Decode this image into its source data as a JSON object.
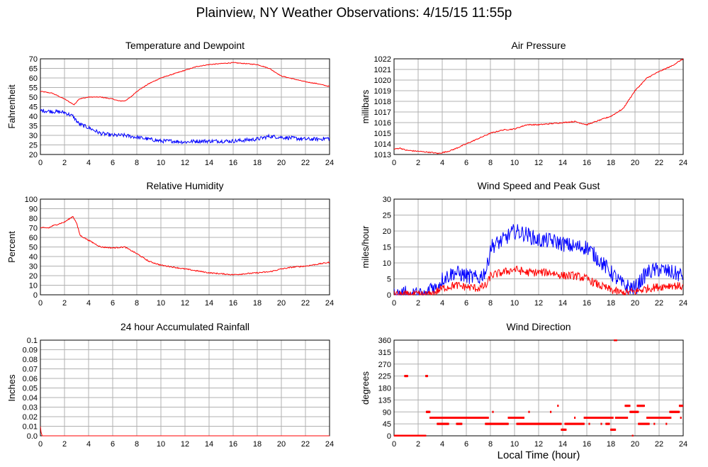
{
  "page": {
    "title": "Plainview, NY Weather Observations: 4/15/15 11:55p",
    "x_axis_title": "Local Time (hour)"
  },
  "colors": {
    "red": "#ff0000",
    "blue": "#0000ff",
    "grid": "#b0b0b0",
    "frame": "#000000"
  },
  "chart_data": [
    {
      "id": "temperature",
      "type": "line",
      "title": "Temperature and Dewpoint",
      "xlabel": "",
      "ylabel": "Fahrenheit",
      "xlim": [
        0,
        24
      ],
      "ylim": [
        20,
        70
      ],
      "x_ticks": [
        0,
        2,
        4,
        6,
        8,
        10,
        12,
        14,
        16,
        18,
        20,
        22,
        24
      ],
      "y_ticks": [
        20,
        25,
        30,
        35,
        40,
        45,
        50,
        55,
        60,
        65,
        70
      ],
      "grid": true,
      "series": [
        {
          "color": "#ff0000",
          "noise": 0.2,
          "x": [
            0,
            1,
            2,
            2.8,
            3.2,
            4,
            5,
            6,
            6.5,
            7,
            7.5,
            8,
            9,
            10,
            11,
            12,
            13,
            14,
            15,
            16,
            17,
            18,
            19,
            20,
            21,
            22,
            23,
            24
          ],
          "y": [
            53,
            52,
            49,
            46,
            49,
            50,
            50,
            49,
            48,
            48,
            50,
            53,
            57,
            60,
            62,
            64,
            66,
            67,
            67.5,
            68,
            67.5,
            67,
            65,
            61,
            59.5,
            58,
            57,
            55.5
          ]
        },
        {
          "color": "#0000ff",
          "noise": 1.0,
          "x": [
            0,
            1,
            2,
            2.7,
            3.2,
            4,
            5,
            6,
            7,
            8,
            9,
            10,
            11,
            12,
            13,
            14,
            15,
            16,
            17,
            18,
            19,
            20,
            21,
            22,
            23,
            24
          ],
          "y": [
            43,
            42.5,
            42,
            40,
            36,
            34,
            31,
            30,
            30,
            29,
            28,
            27,
            27,
            26.5,
            27,
            27,
            27,
            27,
            27.5,
            28,
            29.5,
            29,
            28.5,
            28,
            28,
            28.5
          ]
        }
      ]
    },
    {
      "id": "pressure",
      "type": "line",
      "title": "Air Pressure",
      "xlabel": "",
      "ylabel": "millibars",
      "xlim": [
        0,
        24
      ],
      "ylim": [
        1013,
        1022
      ],
      "x_ticks": [
        0,
        2,
        4,
        6,
        8,
        10,
        12,
        14,
        16,
        18,
        20,
        22,
        24
      ],
      "y_ticks": [
        1013,
        1014,
        1015,
        1016,
        1017,
        1018,
        1019,
        1020,
        1021,
        1022
      ],
      "grid": true,
      "series": [
        {
          "color": "#ff0000",
          "noise": 0.05,
          "x": [
            0,
            0.5,
            1,
            2,
            3,
            3.7,
            4.5,
            5,
            6,
            7,
            8,
            9,
            10,
            11,
            12,
            13,
            14,
            15,
            16,
            17,
            18,
            19,
            20,
            21,
            22,
            23,
            24
          ],
          "y": [
            1013.5,
            1013.6,
            1013.4,
            1013.3,
            1013.2,
            1013.1,
            1013.3,
            1013.5,
            1014,
            1014.5,
            1015,
            1015.3,
            1015.4,
            1015.8,
            1015.8,
            1015.9,
            1016,
            1016.1,
            1015.8,
            1016.2,
            1016.6,
            1017.3,
            1019,
            1020.2,
            1020.8,
            1021.3,
            1022
          ]
        }
      ]
    },
    {
      "id": "humidity",
      "type": "line",
      "title": "Relative Humidity",
      "xlabel": "",
      "ylabel": "Percent",
      "xlim": [
        0,
        24
      ],
      "ylim": [
        0,
        100
      ],
      "x_ticks": [
        0,
        2,
        4,
        6,
        8,
        10,
        12,
        14,
        16,
        18,
        20,
        22,
        24
      ],
      "y_ticks": [
        0,
        10,
        20,
        30,
        40,
        50,
        60,
        70,
        80,
        90,
        100
      ],
      "grid": true,
      "series": [
        {
          "color": "#ff0000",
          "noise": 0.6,
          "x": [
            0,
            0.7,
            1,
            2,
            2.7,
            3,
            3.3,
            4,
            5,
            6,
            7,
            8,
            9,
            10,
            11,
            12,
            13,
            14,
            15,
            16,
            17,
            18,
            19,
            20,
            21,
            22,
            23,
            24
          ],
          "y": [
            70,
            70,
            72,
            76,
            82,
            75,
            62,
            57,
            50,
            49,
            50,
            43,
            35,
            31,
            29,
            27,
            25,
            23,
            22,
            21,
            22,
            23,
            24,
            27,
            29,
            30,
            32,
            34
          ]
        }
      ]
    },
    {
      "id": "wind_speed",
      "type": "line",
      "title": "Wind Speed and Peak Gust",
      "xlabel": "",
      "ylabel": "miles/hour",
      "xlim": [
        0,
        24
      ],
      "ylim": [
        0,
        30
      ],
      "x_ticks": [
        0,
        2,
        4,
        6,
        8,
        10,
        12,
        14,
        16,
        18,
        20,
        22,
        24
      ],
      "y_ticks": [
        0,
        5,
        10,
        15,
        20,
        25,
        30
      ],
      "grid": true,
      "series": [
        {
          "color": "#0000ff",
          "noise": 2.5,
          "floor": 0,
          "x": [
            0,
            0.9,
            1.0,
            1.1,
            2.8,
            3.0,
            3.5,
            4,
            5,
            6,
            7,
            7.7,
            8,
            9,
            10,
            11,
            12,
            13,
            14,
            15,
            16,
            17,
            18,
            19,
            20,
            21,
            22,
            23,
            24
          ],
          "y": [
            0,
            0,
            2,
            0,
            0,
            3,
            2,
            5,
            7,
            6,
            5,
            8,
            15,
            17,
            20,
            19,
            17,
            17,
            16,
            15,
            15,
            11,
            7,
            3,
            2,
            7,
            8,
            7,
            6
          ]
        },
        {
          "color": "#ff0000",
          "noise": 1.3,
          "floor": 0,
          "x": [
            0,
            3,
            3.5,
            4,
            5,
            6,
            7,
            7.7,
            8,
            9,
            10,
            11,
            12,
            13,
            14,
            15,
            16,
            17,
            18,
            19,
            20,
            21,
            22,
            23,
            24
          ],
          "y": [
            0,
            0,
            1,
            2,
            3,
            2.5,
            2,
            3,
            6,
            7,
            8,
            7,
            7,
            7,
            6,
            6,
            5,
            3,
            1.5,
            0.5,
            1,
            2,
            2.5,
            3,
            2.5
          ]
        }
      ]
    },
    {
      "id": "rainfall",
      "type": "line",
      "title": "24 hour Accumulated Rainfall",
      "xlabel": "",
      "ylabel": "Inches",
      "xlim": [
        0,
        24
      ],
      "ylim": [
        0,
        0.1
      ],
      "x_ticks": [
        0,
        2,
        4,
        6,
        8,
        10,
        12,
        14,
        16,
        18,
        20,
        22,
        24
      ],
      "y_ticks": [
        0.0,
        0.01,
        0.02,
        0.03,
        0.04,
        0.05,
        0.06,
        0.07,
        0.08,
        0.09,
        0.1
      ],
      "y_tick_labels": [
        "0.0",
        "0.01",
        "0.02",
        "0.03",
        "0.04",
        "0.05",
        "0.06",
        "0.07",
        "0.08",
        "0.09",
        "0.1"
      ],
      "grid": true,
      "series": [
        {
          "color": "#ff0000",
          "noise": 0,
          "x": [
            0,
            0.05,
            0.15,
            24
          ],
          "y": [
            0.01,
            0.004,
            0,
            0
          ]
        }
      ]
    },
    {
      "id": "wind_direction",
      "type": "scatter",
      "title": "Wind Direction",
      "xlabel": "Local Time (hour)",
      "ylabel": "degrees",
      "xlim": [
        0,
        24
      ],
      "ylim": [
        0,
        360
      ],
      "x_ticks": [
        0,
        2,
        4,
        6,
        8,
        10,
        12,
        14,
        16,
        18,
        20,
        22,
        24
      ],
      "y_ticks": [
        0,
        45,
        90,
        135,
        180,
        225,
        270,
        315,
        360
      ],
      "grid": true,
      "segments": [
        {
          "x0": 0.0,
          "x1": 2.6,
          "y": 0
        },
        {
          "x0": 0.9,
          "x1": 1.1,
          "y": 225
        },
        {
          "x0": 2.65,
          "x1": 2.75,
          "y": 225
        },
        {
          "x0": 2.7,
          "x1": 2.95,
          "y": 90
        },
        {
          "x0": 3.0,
          "x1": 7.8,
          "y": 68
        },
        {
          "x0": 3.6,
          "x1": 4.5,
          "y": 45
        },
        {
          "x0": 5.2,
          "x1": 5.6,
          "y": 45
        },
        {
          "x0": 7.6,
          "x1": 9.5,
          "y": 45
        },
        {
          "x0": 9.5,
          "x1": 10.8,
          "y": 68
        },
        {
          "x0": 10.2,
          "x1": 13.9,
          "y": 45
        },
        {
          "x0": 13.9,
          "x1": 14.3,
          "y": 23
        },
        {
          "x0": 14.2,
          "x1": 15.8,
          "y": 45
        },
        {
          "x0": 15.8,
          "x1": 18.2,
          "y": 68
        },
        {
          "x0": 17.6,
          "x1": 17.9,
          "y": 45
        },
        {
          "x0": 18.0,
          "x1": 18.4,
          "y": 23
        },
        {
          "x0": 18.3,
          "x1": 18.5,
          "y": 360
        },
        {
          "x0": 18.4,
          "x1": 19.4,
          "y": 68
        },
        {
          "x0": 19.2,
          "x1": 19.6,
          "y": 113
        },
        {
          "x0": 19.6,
          "x1": 20.3,
          "y": 90
        },
        {
          "x0": 20.2,
          "x1": 20.8,
          "y": 113
        },
        {
          "x0": 20.3,
          "x1": 21.2,
          "y": 45
        },
        {
          "x0": 21.0,
          "x1": 23.0,
          "y": 68
        },
        {
          "x0": 22.9,
          "x1": 23.7,
          "y": 90
        },
        {
          "x0": 23.7,
          "x1": 24.0,
          "y": 113
        }
      ],
      "points": [
        {
          "x": 2.2,
          "y": 0
        },
        {
          "x": 8.2,
          "y": 90
        },
        {
          "x": 11.2,
          "y": 90
        },
        {
          "x": 13.0,
          "y": 90
        },
        {
          "x": 13.6,
          "y": 113
        },
        {
          "x": 15.0,
          "y": 68
        },
        {
          "x": 16.2,
          "y": 45
        },
        {
          "x": 17.2,
          "y": 45
        },
        {
          "x": 19.8,
          "y": 0
        },
        {
          "x": 21.6,
          "y": 45
        },
        {
          "x": 22.6,
          "y": 45
        },
        {
          "x": 23.8,
          "y": 68
        }
      ]
    }
  ]
}
